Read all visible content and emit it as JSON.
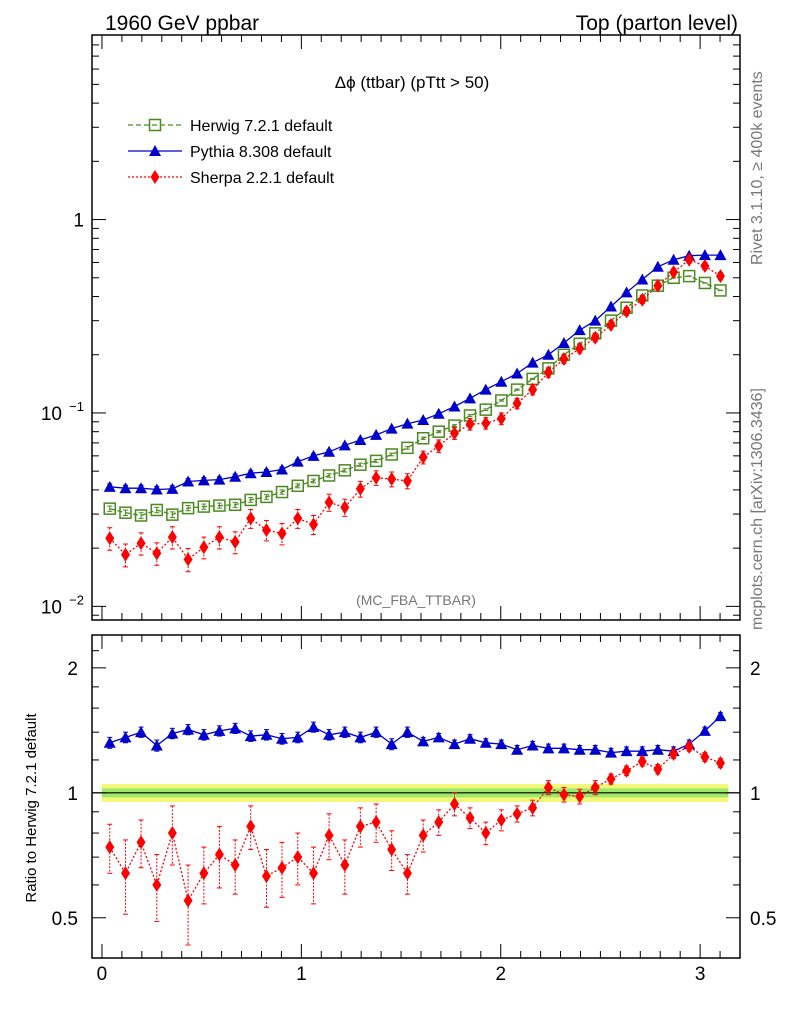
{
  "header": {
    "left": "1960 GeV ppbar",
    "right": "Top (parton level)"
  },
  "side_labels": {
    "top": "Rivet 3.1.10, ≥ 400k events",
    "bottom": "mcplots.cern.ch [arXiv:1306.3436]"
  },
  "chart_data": {
    "type": "line",
    "title": "Δϕ (ttbar) (pTtt > 50)",
    "watermark": "(MC_FBA_TTBAR)",
    "x": [
      0.039,
      0.118,
      0.196,
      0.275,
      0.353,
      0.432,
      0.511,
      0.589,
      0.668,
      0.746,
      0.825,
      0.903,
      0.982,
      1.061,
      1.139,
      1.218,
      1.296,
      1.375,
      1.453,
      1.532,
      1.611,
      1.689,
      1.768,
      1.846,
      1.925,
      2.003,
      2.082,
      2.16,
      2.239,
      2.317,
      2.396,
      2.474,
      2.553,
      2.631,
      2.71,
      2.788,
      2.867,
      2.945,
      3.024,
      3.102
    ],
    "xlim": [
      -0.05,
      3.2
    ],
    "x_ticks": [
      "0",
      "1",
      "2",
      "3"
    ],
    "main": {
      "yscale": "log",
      "ylim": [
        0.0085,
        9
      ],
      "y_ticks": [
        {
          "value": 1,
          "base": "1",
          "exp": ""
        },
        {
          "value": 0.1,
          "base": "10",
          "exp": "−1"
        },
        {
          "value": 0.01,
          "base": "10",
          "exp": "−2"
        }
      ],
      "series": [
        {
          "name": "Herwig 7.2.1 default",
          "color": "#4a8a1e",
          "marker": "open-square",
          "line": "dashed",
          "values": [
            0.032,
            0.0305,
            0.0295,
            0.0315,
            0.0298,
            0.0322,
            0.0328,
            0.0332,
            0.0335,
            0.0355,
            0.0368,
            0.039,
            0.042,
            0.0445,
            0.0475,
            0.0505,
            0.054,
            0.0565,
            0.061,
            0.066,
            0.074,
            0.08,
            0.086,
            0.097,
            0.104,
            0.116,
            0.132,
            0.15,
            0.17,
            0.2,
            0.228,
            0.258,
            0.3,
            0.35,
            0.405,
            0.455,
            0.5,
            0.51,
            0.47,
            0.43
          ],
          "errors": [
            0.001,
            0.001,
            0.001,
            0.001,
            0.001,
            0.001,
            0.001,
            0.001,
            0.001,
            0.001,
            0.001,
            0.001,
            0.001,
            0.001,
            0.001,
            0.001,
            0.001,
            0.001,
            0.001,
            0.001,
            0.001,
            0.001,
            0.001,
            0.001,
            0.001,
            0.001,
            0.001,
            0.001,
            0.001,
            0.001,
            0.001,
            0.001,
            0.001,
            0.001,
            0.001,
            0.001,
            0.001,
            0.001,
            0.001,
            0.001
          ]
        },
        {
          "name": "Pythia 8.308 default",
          "color": "#0000cc",
          "marker": "filled-triangle",
          "line": "solid",
          "values": [
            0.0415,
            0.0408,
            0.0408,
            0.0402,
            0.0405,
            0.0442,
            0.0448,
            0.0452,
            0.0468,
            0.0488,
            0.0495,
            0.051,
            0.056,
            0.06,
            0.063,
            0.068,
            0.0725,
            0.077,
            0.083,
            0.088,
            0.092,
            0.099,
            0.108,
            0.119,
            0.132,
            0.145,
            0.16,
            0.182,
            0.2,
            0.23,
            0.268,
            0.3,
            0.355,
            0.42,
            0.49,
            0.57,
            0.62,
            0.65,
            0.655,
            0.655
          ],
          "errors": [
            0.0015,
            0.0015,
            0.0015,
            0.0015,
            0.0015,
            0.0015,
            0.0015,
            0.0015,
            0.0015,
            0.0015,
            0.0015,
            0.0015,
            0.0015,
            0.0015,
            0.0015,
            0.0015,
            0.0015,
            0.0015,
            0.0015,
            0.0015,
            0.002,
            0.002,
            0.002,
            0.002,
            0.002,
            0.002,
            0.002,
            0.002,
            0.002,
            0.002,
            0.002,
            0.002,
            0.002,
            0.002,
            0.002,
            0.002,
            0.002,
            0.002,
            0.002,
            0.002
          ]
        },
        {
          "name": "Sherpa 2.2.1 default",
          "color": "#ff0000",
          "marker": "filled-diamond",
          "line": "dotted",
          "values": [
            0.0225,
            0.0185,
            0.0212,
            0.0188,
            0.0228,
            0.0175,
            0.0202,
            0.0228,
            0.0215,
            0.0285,
            0.0248,
            0.0238,
            0.0285,
            0.0265,
            0.0345,
            0.0325,
            0.0405,
            0.0462,
            0.0455,
            0.0445,
            0.059,
            0.0675,
            0.0785,
            0.0875,
            0.0885,
            0.0935,
            0.112,
            0.132,
            0.162,
            0.19,
            0.215,
            0.245,
            0.285,
            0.335,
            0.385,
            0.455,
            0.535,
            0.62,
            0.575,
            0.51
          ],
          "errors": [
            0.003,
            0.0025,
            0.0028,
            0.0025,
            0.003,
            0.0024,
            0.0026,
            0.003,
            0.0028,
            0.0032,
            0.003,
            0.003,
            0.0032,
            0.003,
            0.0035,
            0.0033,
            0.0038,
            0.004,
            0.004,
            0.004,
            0.0045,
            0.005,
            0.0055,
            0.006,
            0.006,
            0.0065,
            0.007,
            0.008,
            0.009,
            0.01,
            0.011,
            0.012,
            0.013,
            0.015,
            0.017,
            0.02,
            0.022,
            0.025,
            0.024,
            0.022
          ]
        }
      ]
    },
    "ratio": {
      "ylabel": "Ratio to Herwig 7.2.1 default",
      "yscale": "log",
      "ylim": [
        0.4,
        2.4
      ],
      "y_ticks": [
        "0.5",
        "1",
        "2"
      ],
      "band_inner": 0.025,
      "band_outer": 0.05,
      "band_inner_color": "#9de86a",
      "band_outer_color": "#f3f87a",
      "series": [
        {
          "name": "Pythia 8.308 default",
          "values": [
            1.32,
            1.36,
            1.4,
            1.3,
            1.39,
            1.42,
            1.38,
            1.41,
            1.43,
            1.37,
            1.38,
            1.35,
            1.36,
            1.44,
            1.38,
            1.4,
            1.36,
            1.4,
            1.31,
            1.4,
            1.33,
            1.36,
            1.31,
            1.35,
            1.32,
            1.31,
            1.27,
            1.3,
            1.28,
            1.28,
            1.27,
            1.27,
            1.25,
            1.26,
            1.26,
            1.27,
            1.26,
            1.31,
            1.41,
            1.53
          ],
          "errors": [
            0.04,
            0.04,
            0.04,
            0.04,
            0.04,
            0.04,
            0.04,
            0.04,
            0.04,
            0.04,
            0.04,
            0.04,
            0.04,
            0.04,
            0.04,
            0.04,
            0.04,
            0.04,
            0.04,
            0.04,
            0.03,
            0.03,
            0.03,
            0.03,
            0.03,
            0.03,
            0.03,
            0.03,
            0.03,
            0.03,
            0.03,
            0.03,
            0.03,
            0.03,
            0.03,
            0.03,
            0.03,
            0.03,
            0.03,
            0.03
          ]
        },
        {
          "name": "Sherpa 2.2.1 default",
          "values": [
            0.74,
            0.64,
            0.76,
            0.6,
            0.8,
            0.55,
            0.64,
            0.71,
            0.67,
            0.83,
            0.63,
            0.66,
            0.7,
            0.64,
            0.79,
            0.67,
            0.83,
            0.85,
            0.73,
            0.64,
            0.79,
            0.85,
            0.94,
            0.87,
            0.8,
            0.86,
            0.89,
            0.92,
            1.03,
            0.99,
            0.98,
            1.03,
            1.08,
            1.13,
            1.19,
            1.14,
            1.24,
            1.29,
            1.22,
            1.18
          ],
          "errors": [
            0.1,
            0.13,
            0.1,
            0.11,
            0.13,
            0.12,
            0.1,
            0.12,
            0.1,
            0.1,
            0.1,
            0.1,
            0.1,
            0.1,
            0.1,
            0.1,
            0.09,
            0.09,
            0.08,
            0.07,
            0.07,
            0.06,
            0.06,
            0.05,
            0.05,
            0.05,
            0.04,
            0.04,
            0.04,
            0.04,
            0.04,
            0.04,
            0.03,
            0.03,
            0.03,
            0.03,
            0.03,
            0.03,
            0.03,
            0.03
          ]
        }
      ]
    }
  }
}
